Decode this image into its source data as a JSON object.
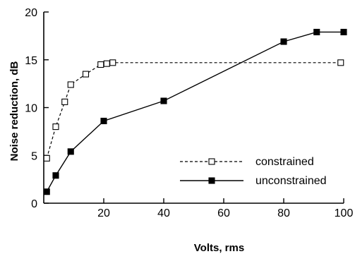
{
  "chart_data": {
    "type": "line",
    "xlabel": "Volts, rms",
    "ylabel": "Noise reduction, dB",
    "xlim": [
      0,
      100
    ],
    "ylim": [
      0,
      20
    ],
    "xticks": [
      20,
      40,
      60,
      80,
      100
    ],
    "yticks": [
      0,
      5,
      10,
      15,
      20
    ],
    "grid": false,
    "legend_position": "center-right",
    "series": [
      {
        "name": "constrained",
        "line_style": "dashed",
        "marker": "open-square",
        "x": [
          1,
          4,
          7,
          9,
          14,
          19,
          21,
          23,
          99
        ],
        "y": [
          4.7,
          8.0,
          10.6,
          12.4,
          13.5,
          14.5,
          14.6,
          14.7,
          14.7
        ]
      },
      {
        "name": "unconstrained",
        "line_style": "solid",
        "marker": "filled-square",
        "x": [
          1,
          4,
          9,
          20,
          40,
          80,
          91,
          100
        ],
        "y": [
          1.2,
          2.9,
          5.4,
          8.6,
          10.7,
          16.9,
          17.9,
          17.9
        ]
      }
    ]
  }
}
